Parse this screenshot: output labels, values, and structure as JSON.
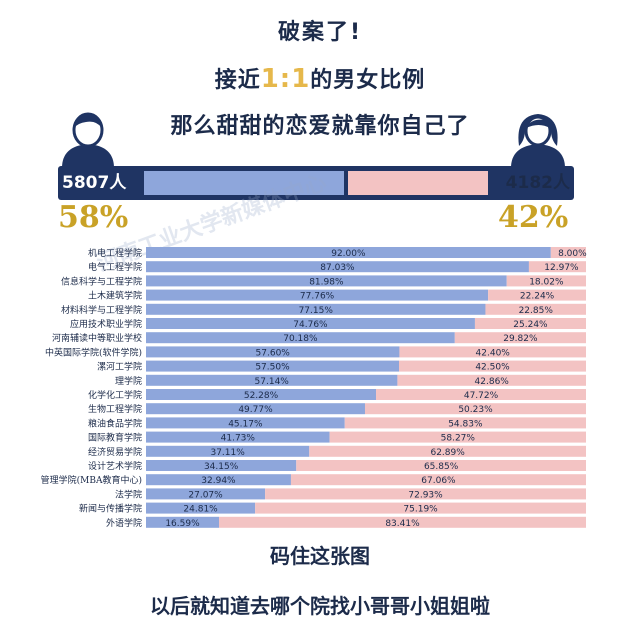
{
  "header": {
    "title": "破案了!",
    "subtitle_prefix": "接近",
    "subtitle_ratio": "1:1",
    "subtitle_suffix": "的男女比例",
    "subtitle2": "那么甜甜的恋爱就靠你自己了"
  },
  "overall": {
    "male_count": "5807人",
    "female_count": "4182人",
    "male_percent": "58%",
    "female_percent": "42%",
    "male_share": 0.58
  },
  "watermark": "河南工业大学新媒体中心",
  "chart_data": {
    "type": "bar",
    "orientation": "horizontal",
    "stacked": true,
    "categories": [
      "机电工程学院",
      "电气工程学院",
      "信息科学与工程学院",
      "土木建筑学院",
      "材料科学与工程学院",
      "应用技术职业学院",
      "河南辅读中等职业学校",
      "中英国际学院(软件学院)",
      "漯河工学院",
      "理学院",
      "化学化工学院",
      "生物工程学院",
      "粮油食品学院",
      "国际教育学院",
      "经济贸易学院",
      "设计艺术学院",
      "管理学院(MBA教育中心)",
      "法学院",
      "新闻与传播学院",
      "外语学院"
    ],
    "series": [
      {
        "name": "男",
        "values": [
          92.0,
          87.03,
          81.98,
          77.76,
          77.15,
          74.76,
          70.18,
          57.6,
          57.5,
          57.14,
          52.28,
          49.77,
          45.17,
          41.73,
          37.11,
          34.15,
          32.94,
          27.07,
          24.81,
          16.59
        ],
        "labels": [
          "92.00%",
          "87.03%",
          "81.98%",
          "77.76%",
          "77.15%",
          "74.76%",
          "70.18%",
          "57.60%",
          "57.50%",
          "57.14%",
          "52.28%",
          "49.77%",
          "45.17%",
          "41.73%",
          "37.11%",
          "34.15%",
          "32.94%",
          "27.07%",
          "24.81%",
          "16.59%"
        ]
      },
      {
        "name": "女",
        "values": [
          8.0,
          12.97,
          18.02,
          22.24,
          22.85,
          25.24,
          29.82,
          42.4,
          42.5,
          42.86,
          47.72,
          50.23,
          54.83,
          58.27,
          62.89,
          65.85,
          67.06,
          72.93,
          75.19,
          83.41
        ],
        "labels": [
          "8.00%",
          "12.97%",
          "18.02%",
          "22.24%",
          "22.85%",
          "25.24%",
          "29.82%",
          "42.40%",
          "42.50%",
          "42.86%",
          "47.72%",
          "50.23%",
          "54.83%",
          "58.27%",
          "62.89%",
          "65.85%",
          "67.06%",
          "72.93%",
          "75.19%",
          "83.41%"
        ]
      }
    ],
    "xlim": [
      0,
      100
    ],
    "colors": {
      "male": "#8ea6db",
      "female": "#f3c3c3",
      "text": "#1c2b4a"
    }
  },
  "footer": {
    "line1": "码住这张图",
    "line2": "以后就知道去哪个院找小哥哥小姐姐啦"
  }
}
